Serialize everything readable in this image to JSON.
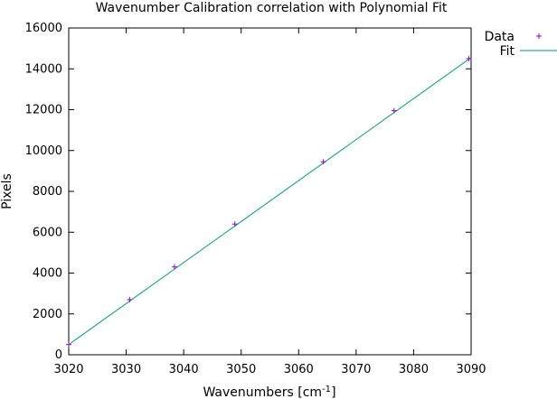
{
  "chart_data": {
    "type": "scatter",
    "title": "Wavenumber Calibration correlation with Polynomial Fit",
    "xlabel_main": "Wavenumbers [cm",
    "xlabel_sup": "-1",
    "xlabel_end": "]",
    "ylabel": "Pixels",
    "xlim": [
      3020,
      3090
    ],
    "ylim": [
      0,
      16000
    ],
    "xticks": [
      "3020",
      "3030",
      "3040",
      "3050",
      "3060",
      "3070",
      "3080",
      "3090"
    ],
    "yticks": [
      "0",
      "2000",
      "4000",
      "6000",
      "8000",
      "10000",
      "12000",
      "14000",
      "16000"
    ],
    "grid": false,
    "legend_position": "top-right-outside",
    "series": [
      {
        "name": "Data",
        "marker": "+",
        "color": "#9400d3",
        "points": [
          [
            3020.0,
            500
          ],
          [
            3030.6,
            2700
          ],
          [
            3038.4,
            4300
          ],
          [
            3048.9,
            6400
          ],
          [
            3064.3,
            9450
          ],
          [
            3076.6,
            11950
          ],
          [
            3089.6,
            14500
          ]
        ]
      },
      {
        "name": "Fit",
        "color": "#009e73",
        "line": [
          [
            3020.0,
            500
          ],
          [
            3090.0,
            14550
          ]
        ]
      }
    ]
  }
}
